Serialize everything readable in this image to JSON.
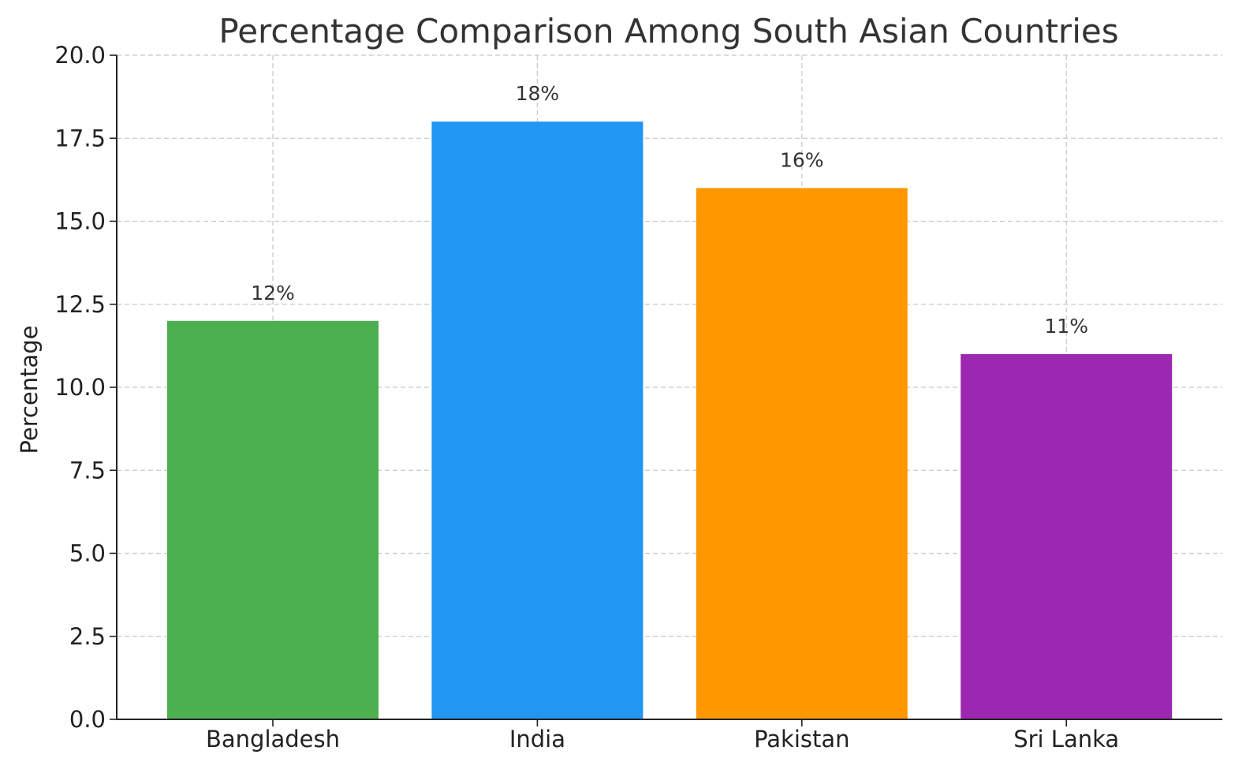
{
  "chart_data": {
    "type": "bar",
    "title": "Percentage Comparison Among South Asian Countries",
    "xlabel": "",
    "ylabel": "Percentage",
    "categories": [
      "Bangladesh",
      "India",
      "Pakistan",
      "Sri Lanka"
    ],
    "values": [
      12,
      18,
      16,
      11
    ],
    "data_labels": [
      "12%",
      "18%",
      "16%",
      "11%"
    ],
    "colors": [
      "#4caf50",
      "#2196f3",
      "#ff9800",
      "#9c27b0"
    ],
    "ylim": [
      0,
      20
    ],
    "yticks": [
      "0.0",
      "2.5",
      "5.0",
      "7.5",
      "10.0",
      "12.5",
      "15.0",
      "17.5",
      "20.0"
    ],
    "grid": true
  }
}
